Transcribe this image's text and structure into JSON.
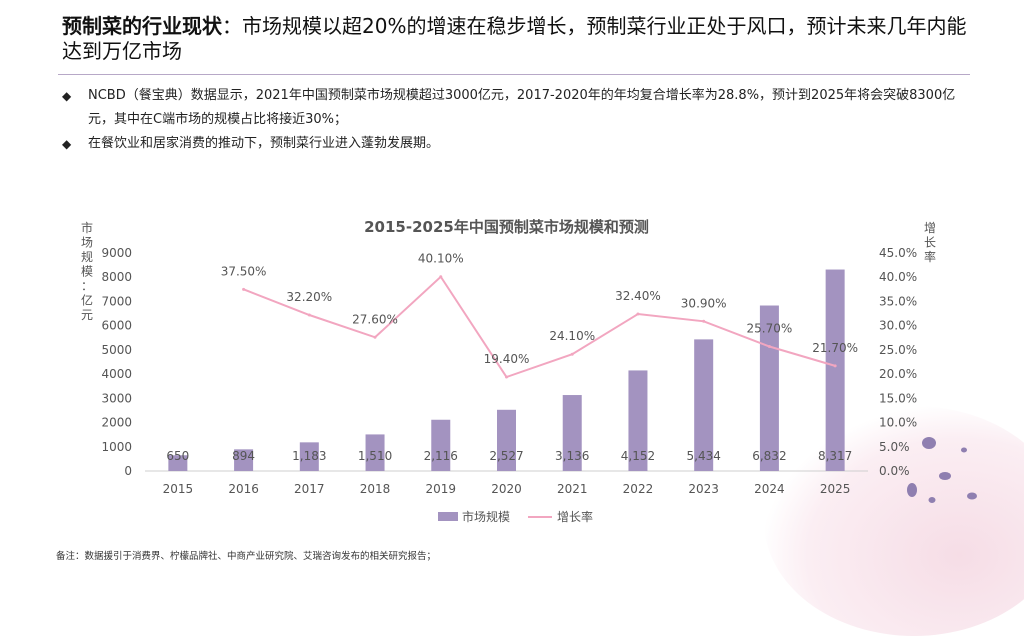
{
  "header": {
    "title_bold": "预制菜的行业现状",
    "title_rest": "：市场规模以超20%的增速在稳步增长，预制菜行业正处于风口，预计未来几年内能达到万亿市场"
  },
  "bullets": [
    {
      "symbol": "◆",
      "text": "NCBD（餐宝典）数据显示，2021年中国预制菜市场规模超过3000亿元，2017-2020年的年均复合增长率为28.8%，预计到2025年将会突破8300亿元，其中在C端市场的规模占比将接近30%；"
    },
    {
      "symbol": "◆",
      "text": "在餐饮业和居家消费的推动下，预制菜行业进入蓬勃发展期。"
    }
  ],
  "chart_data": {
    "type": "bar+line",
    "title": "2015-2025年中国预制菜市场规模和预测",
    "categories": [
      "2015",
      "2016",
      "2017",
      "2018",
      "2019",
      "2020",
      "2021",
      "2022",
      "2023",
      "2024",
      "2025"
    ],
    "series": [
      {
        "name": "市场规模",
        "type": "bar",
        "axis": "left",
        "values": [
          650,
          894,
          1183,
          1510,
          2116,
          2527,
          3136,
          4152,
          5434,
          6832,
          8317
        ],
        "labels": [
          "650",
          "894",
          "1,183",
          "1,510",
          "2,116",
          "2,527",
          "3,136",
          "4,152",
          "5,434",
          "6,832",
          "8,317"
        ]
      },
      {
        "name": "增长率",
        "type": "line",
        "axis": "right",
        "values": [
          null,
          37.5,
          32.2,
          27.6,
          40.1,
          19.4,
          24.1,
          32.4,
          30.9,
          25.7,
          21.7
        ],
        "labels": [
          "",
          "37.50%",
          "32.20%",
          "27.60%",
          "40.10%",
          "19.40%",
          "24.10%",
          "32.40%",
          "30.90%",
          "25.70%",
          "21.70%"
        ]
      }
    ],
    "ylabel_left": "市场规模：亿元",
    "ylabel_right": "增长率",
    "ylim_left": [
      0,
      9000
    ],
    "yticks_left": [
      "0",
      "1000",
      "2000",
      "3000",
      "4000",
      "5000",
      "6000",
      "7000",
      "8000",
      "9000"
    ],
    "ylim_right": [
      0,
      45
    ],
    "yticks_right": [
      "0.0%",
      "5.0%",
      "10.0%",
      "15.0%",
      "20.0%",
      "25.0%",
      "30.0%",
      "35.0%",
      "40.0%",
      "45.0%"
    ],
    "legend": {
      "position": "bottom",
      "bar_label": "市场规模",
      "line_label": "增长率"
    },
    "colors": {
      "bar": "#a393c0",
      "line": "#f2a6c0"
    }
  },
  "footnote": "备注：数据援引于消费界、柠檬品牌社、中商产业研究院、艾瑞咨询发布的相关研究报告；"
}
